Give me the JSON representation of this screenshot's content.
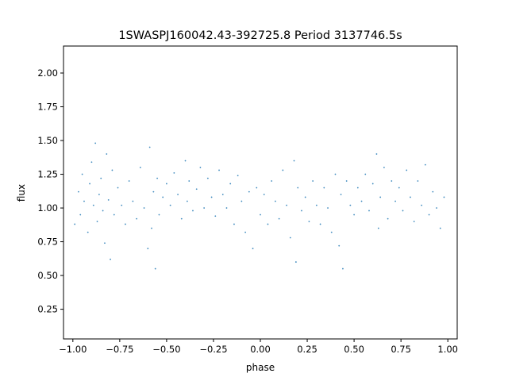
{
  "chart_data": {
    "type": "scatter",
    "title": "1SWASPJ160042.43-392725.8 Period 3137746.5s",
    "xlabel": "phase",
    "ylabel": "flux",
    "xlim": [
      -1.05,
      1.05
    ],
    "ylim": [
      0.03,
      2.2
    ],
    "xticks": [
      -1.0,
      -0.75,
      -0.5,
      -0.25,
      0.0,
      0.25,
      0.5,
      0.75,
      1.0
    ],
    "xtick_labels": [
      "−1.00",
      "−0.75",
      "−0.50",
      "−0.25",
      "0.00",
      "0.25",
      "0.50",
      "0.75",
      "1.00"
    ],
    "yticks": [
      0.25,
      0.5,
      0.75,
      1.0,
      1.25,
      1.5,
      1.75,
      2.0
    ],
    "ytick_labels": [
      "0.25",
      "0.50",
      "0.75",
      "1.00",
      "1.25",
      "1.50",
      "1.75",
      "2.00"
    ],
    "grid": false,
    "point_color": "#1f77b4",
    "series": [
      {
        "points": [
          [
            -0.99,
            0.88
          ],
          [
            -0.97,
            1.12
          ],
          [
            -0.96,
            0.95
          ],
          [
            -0.95,
            1.25
          ],
          [
            -0.94,
            1.05
          ],
          [
            -0.92,
            0.82
          ],
          [
            -0.91,
            1.18
          ],
          [
            -0.9,
            1.34
          ],
          [
            -0.89,
            1.02
          ],
          [
            -0.88,
            1.48
          ],
          [
            -0.87,
            0.9
          ],
          [
            -0.86,
            1.1
          ],
          [
            -0.85,
            1.22
          ],
          [
            -0.84,
            0.98
          ],
          [
            -0.83,
            0.74
          ],
          [
            -0.82,
            1.4
          ],
          [
            -0.81,
            1.06
          ],
          [
            -0.8,
            0.62
          ],
          [
            -0.79,
            1.28
          ],
          [
            -0.78,
            0.95
          ],
          [
            -0.76,
            1.15
          ],
          [
            -0.74,
            1.02
          ],
          [
            -0.72,
            0.88
          ],
          [
            -0.7,
            1.2
          ],
          [
            -0.68,
            1.05
          ],
          [
            -0.66,
            0.92
          ],
          [
            -0.64,
            1.3
          ],
          [
            -0.62,
            1.0
          ],
          [
            -0.6,
            0.7
          ],
          [
            -0.59,
            1.45
          ],
          [
            -0.58,
            0.85
          ],
          [
            -0.57,
            1.12
          ],
          [
            -0.56,
            0.55
          ],
          [
            -0.55,
            1.22
          ],
          [
            -0.54,
            0.95
          ],
          [
            -0.52,
            1.08
          ],
          [
            -0.5,
            1.18
          ],
          [
            -0.48,
            1.02
          ],
          [
            -0.46,
            1.26
          ],
          [
            -0.44,
            1.1
          ],
          [
            -0.42,
            0.92
          ],
          [
            -0.4,
            1.35
          ],
          [
            -0.39,
            1.05
          ],
          [
            -0.38,
            1.2
          ],
          [
            -0.36,
            0.98
          ],
          [
            -0.34,
            1.14
          ],
          [
            -0.32,
            1.3
          ],
          [
            -0.3,
            1.0
          ],
          [
            -0.28,
            1.22
          ],
          [
            -0.26,
            1.08
          ],
          [
            -0.24,
            0.94
          ],
          [
            -0.22,
            1.28
          ],
          [
            -0.2,
            1.1
          ],
          [
            -0.18,
            1.0
          ],
          [
            -0.16,
            1.18
          ],
          [
            -0.14,
            0.88
          ],
          [
            -0.12,
            1.24
          ],
          [
            -0.1,
            1.05
          ],
          [
            -0.08,
            0.82
          ],
          [
            -0.06,
            1.12
          ],
          [
            -0.04,
            0.7
          ],
          [
            -0.02,
            1.15
          ],
          [
            0.0,
            0.95
          ],
          [
            0.02,
            1.1
          ],
          [
            0.04,
            0.88
          ],
          [
            0.06,
            1.2
          ],
          [
            0.08,
            1.05
          ],
          [
            0.1,
            0.92
          ],
          [
            0.12,
            1.28
          ],
          [
            0.14,
            1.02
          ],
          [
            0.16,
            0.78
          ],
          [
            0.18,
            1.35
          ],
          [
            0.19,
            0.6
          ],
          [
            0.2,
            1.15
          ],
          [
            0.22,
            0.98
          ],
          [
            0.24,
            1.08
          ],
          [
            0.26,
            0.9
          ],
          [
            0.28,
            1.2
          ],
          [
            0.3,
            1.02
          ],
          [
            0.32,
            0.88
          ],
          [
            0.34,
            1.15
          ],
          [
            0.36,
            1.0
          ],
          [
            0.38,
            0.82
          ],
          [
            0.4,
            1.25
          ],
          [
            0.42,
            0.72
          ],
          [
            0.43,
            1.1
          ],
          [
            0.44,
            0.55
          ],
          [
            0.46,
            1.2
          ],
          [
            0.48,
            1.02
          ],
          [
            0.5,
            0.95
          ],
          [
            0.52,
            1.15
          ],
          [
            0.54,
            1.05
          ],
          [
            0.56,
            1.25
          ],
          [
            0.58,
            0.98
          ],
          [
            0.6,
            1.18
          ],
          [
            0.62,
            1.4
          ],
          [
            0.63,
            0.85
          ],
          [
            0.64,
            1.08
          ],
          [
            0.66,
            1.3
          ],
          [
            0.68,
            0.92
          ],
          [
            0.7,
            1.2
          ],
          [
            0.72,
            1.05
          ],
          [
            0.74,
            1.15
          ],
          [
            0.76,
            0.98
          ],
          [
            0.78,
            1.28
          ],
          [
            0.8,
            1.08
          ],
          [
            0.82,
            0.9
          ],
          [
            0.84,
            1.2
          ],
          [
            0.86,
            1.02
          ],
          [
            0.88,
            1.32
          ],
          [
            0.9,
            0.95
          ],
          [
            0.92,
            1.12
          ],
          [
            0.94,
            1.0
          ],
          [
            0.96,
            0.85
          ],
          [
            0.98,
            1.08
          ]
        ]
      }
    ]
  }
}
